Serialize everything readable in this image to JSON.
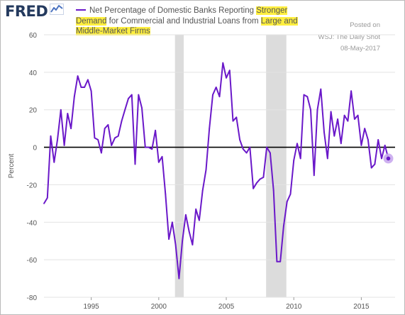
{
  "header": {
    "logo_text": "FRED",
    "logo_icon": "line-chart-icon",
    "title_prefix": "Net Percentage of Domestic Banks Reporting ",
    "title_hl1": "Stronger Demand",
    "title_mid": " for Commercial and Industrial Loans from ",
    "title_hl2": "Large and Middle-Market Firms",
    "posted_on": "Posted on",
    "source": "WSJ: The Daily Shot",
    "date": "08-May-2017"
  },
  "colors": {
    "series": "#6a18c9",
    "highlight": "#ffef3f",
    "recession": "#dcdcdc",
    "grid": "#e3e3e3",
    "zero_line": "#000000",
    "end_marker": "#c9a9ee"
  },
  "chart_data": {
    "type": "line",
    "ylabel": "Percent",
    "xlim": [
      1991.5,
      2017.5
    ],
    "ylim": [
      -80,
      60
    ],
    "x_ticks": [
      1995,
      2000,
      2005,
      2010,
      2015
    ],
    "x_tick_labels": [
      "1995",
      "2000",
      "2005",
      "2010",
      "2015"
    ],
    "y_ticks": [
      -80,
      -60,
      -40,
      -20,
      0,
      20,
      40,
      60
    ],
    "y_tick_labels": [
      "-80",
      "-60",
      "-40",
      "-20",
      "0",
      "20",
      "40",
      "60"
    ],
    "grid": "horizontal",
    "reference_line": 0,
    "recessions": [
      [
        2001.2,
        2001.85
      ],
      [
        2007.95,
        2009.45
      ]
    ],
    "series": [
      {
        "x": [
          1991.5,
          1991.75,
          1992.0,
          1992.25,
          1992.5,
          1992.75,
          1993.0,
          1993.25,
          1993.5,
          1993.75,
          1994.0,
          1994.25,
          1994.5,
          1994.75,
          1995.0,
          1995.25,
          1995.5,
          1995.75,
          1996.0,
          1996.25,
          1996.5,
          1996.75,
          1997.0,
          1997.25,
          1997.5,
          1997.75,
          1998.0,
          1998.25,
          1998.5,
          1998.75,
          1999.0,
          1999.25,
          1999.5,
          1999.75,
          2000.0,
          2000.25,
          2000.5,
          2000.75,
          2001.0,
          2001.25,
          2001.5,
          2001.75,
          2002.0,
          2002.25,
          2002.5,
          2002.75,
          2003.0,
          2003.25,
          2003.5,
          2003.75,
          2004.0,
          2004.25,
          2004.5,
          2004.75,
          2005.0,
          2005.25,
          2005.5,
          2005.75,
          2006.0,
          2006.25,
          2006.5,
          2006.75,
          2007.0,
          2007.25,
          2007.5,
          2007.75,
          2008.0,
          2008.25,
          2008.5,
          2008.75,
          2009.0,
          2009.25,
          2009.5,
          2009.75,
          2010.0,
          2010.25,
          2010.5,
          2010.75,
          2011.0,
          2011.25,
          2011.5,
          2011.75,
          2012.0,
          2012.25,
          2012.5,
          2012.75,
          2013.0,
          2013.25,
          2013.5,
          2013.75,
          2014.0,
          2014.25,
          2014.5,
          2014.75,
          2015.0,
          2015.25,
          2015.5,
          2015.75,
          2016.0,
          2016.25,
          2016.5,
          2016.75,
          2017.0
        ],
        "values": [
          -30,
          -27,
          6,
          -8,
          4,
          20,
          1,
          18,
          10,
          27,
          38,
          32,
          32,
          36,
          30,
          5,
          4,
          -3,
          10,
          12,
          1,
          5,
          6,
          14,
          20,
          26,
          28,
          -9,
          28,
          21,
          0,
          0,
          -1,
          9,
          -8,
          -5,
          -25,
          -49,
          -40,
          -52,
          -70,
          -50,
          -36,
          -45,
          -52,
          -33,
          -39,
          -23,
          -12,
          10,
          28,
          32,
          27,
          45,
          37,
          41,
          14,
          16,
          4,
          -1,
          -3,
          0,
          -22,
          -19,
          -17,
          -16,
          0,
          -3,
          -23,
          -61,
          -61,
          -42,
          -29,
          -25,
          -7,
          2,
          -6,
          28,
          27,
          20,
          -15,
          20,
          31,
          8,
          -6,
          19,
          6,
          15,
          2,
          17,
          14,
          30,
          15,
          17,
          1,
          10,
          4,
          -11,
          -9,
          4,
          -6,
          1,
          -6
        ]
      }
    ]
  }
}
